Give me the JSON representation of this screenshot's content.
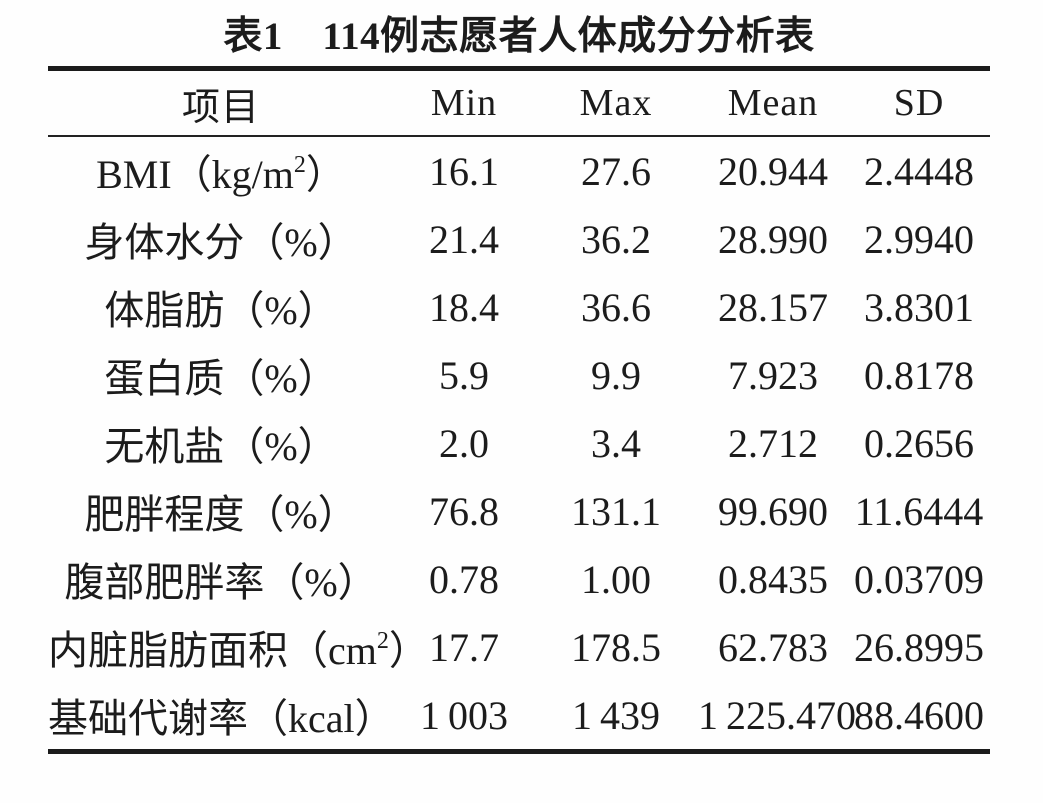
{
  "title": "表1　114例志愿者人体成分分析表",
  "colors": {
    "text": "#1c1c1c",
    "rule": "#1b1b1b",
    "background": "#fefefe"
  },
  "table": {
    "headers": [
      "项目",
      "Min",
      "Max",
      "Mean",
      "SD"
    ],
    "rows": [
      {
        "label_pre": "BMI（kg/m",
        "label_sup": "2",
        "label_post": "）",
        "min": "16.1",
        "max": "27.6",
        "mean": "20.944",
        "sd": "2.4448"
      },
      {
        "label_pre": "身体水分（%）",
        "label_sup": "",
        "label_post": "",
        "min": "21.4",
        "max": "36.2",
        "mean": "28.990",
        "sd": "2.9940"
      },
      {
        "label_pre": "体脂肪（%）",
        "label_sup": "",
        "label_post": "",
        "min": "18.4",
        "max": "36.6",
        "mean": "28.157",
        "sd": "3.8301"
      },
      {
        "label_pre": "蛋白质（%）",
        "label_sup": "",
        "label_post": "",
        "min": "5.9",
        "max": "9.9",
        "mean": "7.923",
        "sd": "0.8178"
      },
      {
        "label_pre": "无机盐（%）",
        "label_sup": "",
        "label_post": "",
        "min": "2.0",
        "max": "3.4",
        "mean": "2.712",
        "sd": "0.2656"
      },
      {
        "label_pre": "肥胖程度（%）",
        "label_sup": "",
        "label_post": "",
        "min": "76.8",
        "max": "131.1",
        "mean": "99.690",
        "sd": "11.6444"
      },
      {
        "label_pre": "腹部肥胖率（%）",
        "label_sup": "",
        "label_post": "",
        "min": "0.78",
        "max": "1.00",
        "mean": "0.8435",
        "sd": "0.03709"
      },
      {
        "label_pre": "内脏脂肪面积（cm",
        "label_sup": "2",
        "label_post": "）",
        "min": "17.7",
        "max": "178.5",
        "mean": "62.783",
        "sd": "26.8995"
      },
      {
        "label_pre": "基础代谢率（kcal）",
        "label_sup": "",
        "label_post": "",
        "min": "1 003",
        "max": "1 439",
        "mean": "1 225.470",
        "sd": "88.4600"
      }
    ]
  }
}
